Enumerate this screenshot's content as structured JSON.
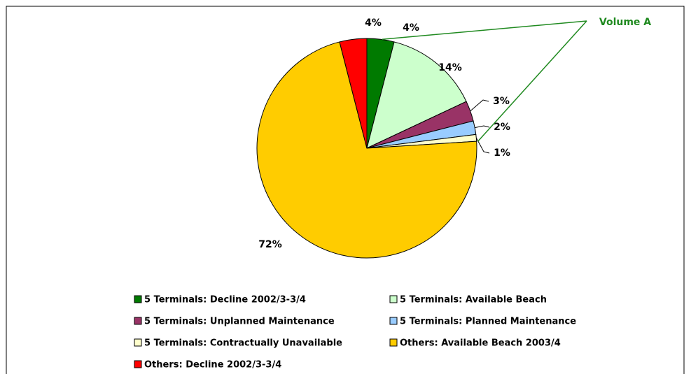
{
  "chart_data": {
    "type": "pie",
    "categories": [
      "5 Terminals: Decline 2002/3-3/4",
      "5 Terminals: Available Beach",
      "5 Terminals: Unplanned Maintenance",
      "5 Terminals: Planned Maintenance",
      "5 Terminals: Contractually Unavailable",
      "Others: Available Beach 2003/4",
      "Others: Decline 2002/3-3/4"
    ],
    "values": [
      4,
      14,
      3,
      2,
      1,
      72,
      4
    ],
    "value_labels": [
      "4%",
      "14%",
      "3%",
      "2%",
      "1%",
      "72%",
      "4%"
    ],
    "colors": [
      "#007a00",
      "#ccffcc",
      "#993366",
      "#99ccff",
      "#ffffcc",
      "#ffcc00",
      "#ff0000"
    ],
    "annotation": "Volume A",
    "annotation_color": "#208a20"
  }
}
